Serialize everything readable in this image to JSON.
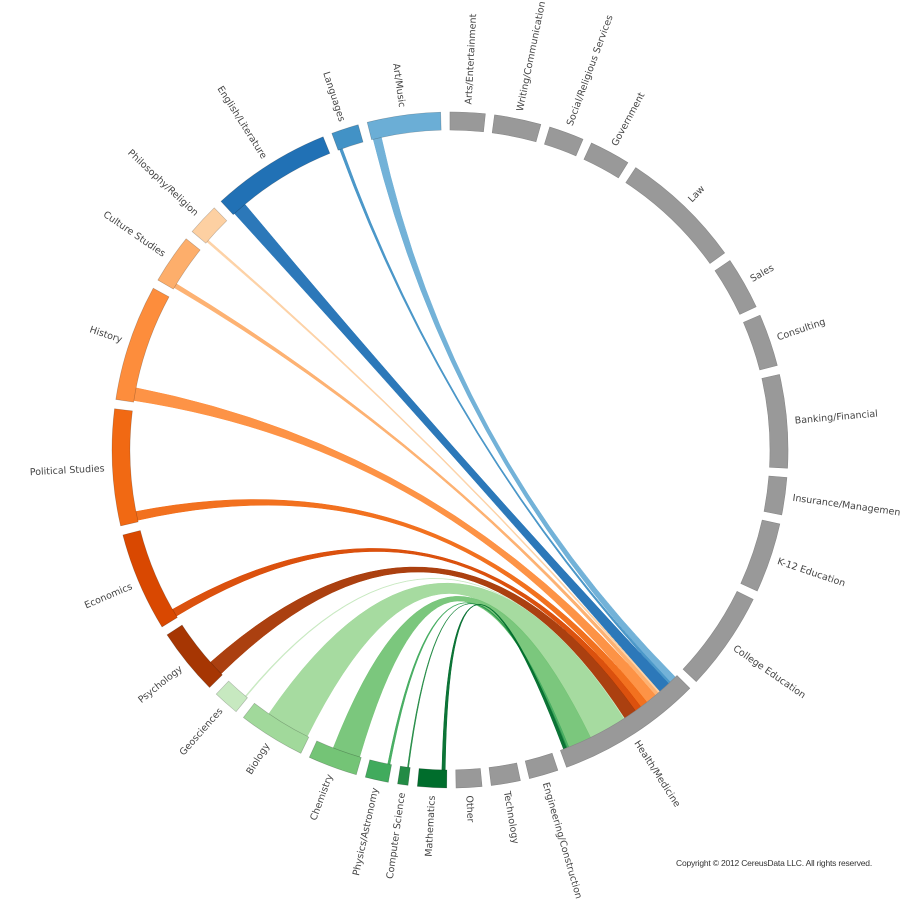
{
  "chart_data": {
    "type": "chord",
    "groups": [
      {
        "name": "Arts/Entertainment",
        "value": 6,
        "color": "#999999"
      },
      {
        "name": "Writing/Communication",
        "value": 8,
        "color": "#999999"
      },
      {
        "name": "Social/Religious Services",
        "value": 6,
        "color": "#999999"
      },
      {
        "name": "Government",
        "value": 7,
        "color": "#999999"
      },
      {
        "name": "Law",
        "value": 21,
        "color": "#999999"
      },
      {
        "name": "Sales",
        "value": 9,
        "color": "#999999"
      },
      {
        "name": "Consulting",
        "value": 9,
        "color": "#999999"
      },
      {
        "name": "Banking/Financial",
        "value": 16,
        "color": "#999999"
      },
      {
        "name": "Insurance/Management",
        "value": 6.4,
        "color": "#999999"
      },
      {
        "name": "K-12 Education",
        "value": 12,
        "color": "#999999"
      },
      {
        "name": "College Education",
        "value": 17,
        "color": "#999999"
      },
      {
        "name": "Health/Medicine",
        "value": 25,
        "color": "#999999"
      },
      {
        "name": "Engineering/Construction",
        "value": 5,
        "color": "#999999"
      },
      {
        "name": "Technology",
        "value": 5,
        "color": "#999999"
      },
      {
        "name": "Other",
        "value": 4.4,
        "color": "#999999"
      },
      {
        "name": "Mathematics",
        "value": 5,
        "color": "#006d2c"
      },
      {
        "name": "Computer Science",
        "value": 1.8,
        "color": "#238b45"
      },
      {
        "name": "Physics/Astronomy",
        "value": 4,
        "color": "#41ab5d"
      },
      {
        "name": "Chemistry",
        "value": 8.5,
        "color": "#74c476"
      },
      {
        "name": "Biology",
        "value": 11.5,
        "color": "#a1d99b"
      },
      {
        "name": "Geosciences",
        "value": 4.5,
        "color": "#c7e9c0"
      },
      {
        "name": "Psychology",
        "value": 11.5,
        "color": "#a63603"
      },
      {
        "name": "Economics",
        "value": 17,
        "color": "#d94801"
      },
      {
        "name": "Political Studies",
        "value": 20,
        "color": "#f16913"
      },
      {
        "name": "History",
        "value": 20,
        "color": "#fd8d3c"
      },
      {
        "name": "Culture Studies",
        "value": 8.5,
        "color": "#fdae6b"
      },
      {
        "name": "Philosophy/Religion",
        "value": 5.5,
        "color": "#fdd0a2"
      },
      {
        "name": "English/Literature",
        "value": 20.6,
        "color": "#2171b5"
      },
      {
        "name": "Languages",
        "value": 4.7,
        "color": "#4292c6"
      },
      {
        "name": "Art/Music",
        "value": 12.6,
        "color": "#6baed6"
      }
    ],
    "chords": [
      {
        "source": "Art/Music",
        "target": "Health/Medicine",
        "value": 1.5
      },
      {
        "source": "Languages",
        "target": "Health/Medicine",
        "value": 0.5
      },
      {
        "source": "English/Literature",
        "target": "Health/Medicine",
        "value": 2.5
      },
      {
        "source": "Philosophy/Religion",
        "target": "Health/Medicine",
        "value": 0.4
      },
      {
        "source": "Culture Studies",
        "target": "Health/Medicine",
        "value": 0.8
      },
      {
        "source": "History",
        "target": "Health/Medicine",
        "value": 2.3
      },
      {
        "source": "Political Studies",
        "target": "Health/Medicine",
        "value": 1.6
      },
      {
        "source": "Economics",
        "target": "Health/Medicine",
        "value": 1.4
      },
      {
        "source": "Psychology",
        "target": "Health/Medicine",
        "value": 2.8
      },
      {
        "source": "Geosciences",
        "target": "Health/Medicine",
        "value": 0.2
      },
      {
        "source": "Biology",
        "target": "Health/Medicine",
        "value": 8
      },
      {
        "source": "Chemistry",
        "target": "Health/Medicine",
        "value": 5
      },
      {
        "source": "Physics/Astronomy",
        "target": "Health/Medicine",
        "value": 0.4
      },
      {
        "source": "Computer Science",
        "target": "Health/Medicine",
        "value": 0.2
      },
      {
        "source": "Mathematics",
        "target": "Health/Medicine",
        "value": 0.6
      }
    ],
    "highlighted_group": "Health/Medicine"
  },
  "footer": {
    "copyright": "Copyright © 2012 CereusData LLC. All rights reserved."
  }
}
